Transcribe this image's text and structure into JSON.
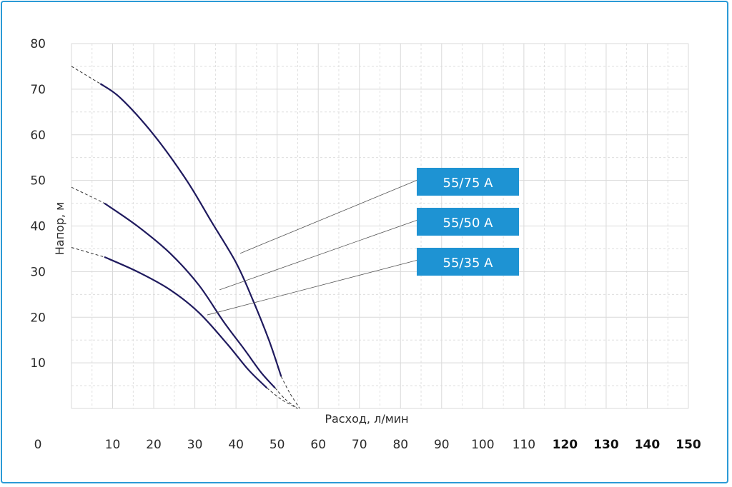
{
  "chart_data": {
    "type": "line",
    "xlabel": "Расход, л/мин",
    "ylabel": "Напор, м",
    "x_ticks": [
      0,
      10,
      20,
      30,
      40,
      50,
      60,
      70,
      80,
      90,
      100,
      110,
      120,
      130,
      140,
      150
    ],
    "x_ticks_bold_from": 120,
    "y_ticks": [
      10,
      20,
      30,
      40,
      50,
      60,
      70,
      80
    ],
    "xlim": [
      0,
      150
    ],
    "ylim": [
      0,
      80
    ],
    "grid": true,
    "series": [
      {
        "name": "55/75 A",
        "dashed": [
          [
            0,
            75
          ],
          [
            7,
            71.2
          ]
        ],
        "solid": [
          [
            7,
            71.2
          ],
          [
            12,
            68
          ],
          [
            20,
            60
          ],
          [
            28,
            50
          ],
          [
            34,
            41
          ],
          [
            40,
            32
          ],
          [
            44,
            24
          ],
          [
            48,
            15
          ],
          [
            51,
            7
          ]
        ],
        "dashed_end": [
          [
            51,
            7
          ],
          [
            53,
            3.5
          ],
          [
            55.5,
            0
          ]
        ],
        "leader_at": [
          41,
          34
        ]
      },
      {
        "name": "55/50 A",
        "dashed": [
          [
            0,
            48.5
          ],
          [
            8,
            45
          ]
        ],
        "solid": [
          [
            8,
            45
          ],
          [
            16,
            40
          ],
          [
            24,
            34
          ],
          [
            31,
            27
          ],
          [
            37,
            19
          ],
          [
            42,
            13
          ],
          [
            46,
            8
          ],
          [
            49.5,
            4.5
          ]
        ],
        "dashed_end": [
          [
            49.5,
            4.5
          ],
          [
            52,
            2
          ],
          [
            55,
            0
          ]
        ],
        "leader_at": [
          36,
          26
        ]
      },
      {
        "name": "55/35 A",
        "dashed": [
          [
            0,
            35.3
          ],
          [
            8,
            33.2
          ]
        ],
        "solid": [
          [
            8,
            33.2
          ],
          [
            16,
            30
          ],
          [
            24,
            26
          ],
          [
            31,
            21
          ],
          [
            38,
            14
          ],
          [
            43,
            8.5
          ],
          [
            47.5,
            4.5
          ]
        ],
        "dashed_end": [
          [
            47.5,
            4.5
          ],
          [
            51,
            2
          ],
          [
            55,
            0
          ]
        ],
        "leader_at": [
          33,
          20.5
        ]
      }
    ],
    "legend_color": "#1e93d3",
    "curve_color": "#1f1a5e",
    "grid_color": "#d9d9d9"
  }
}
